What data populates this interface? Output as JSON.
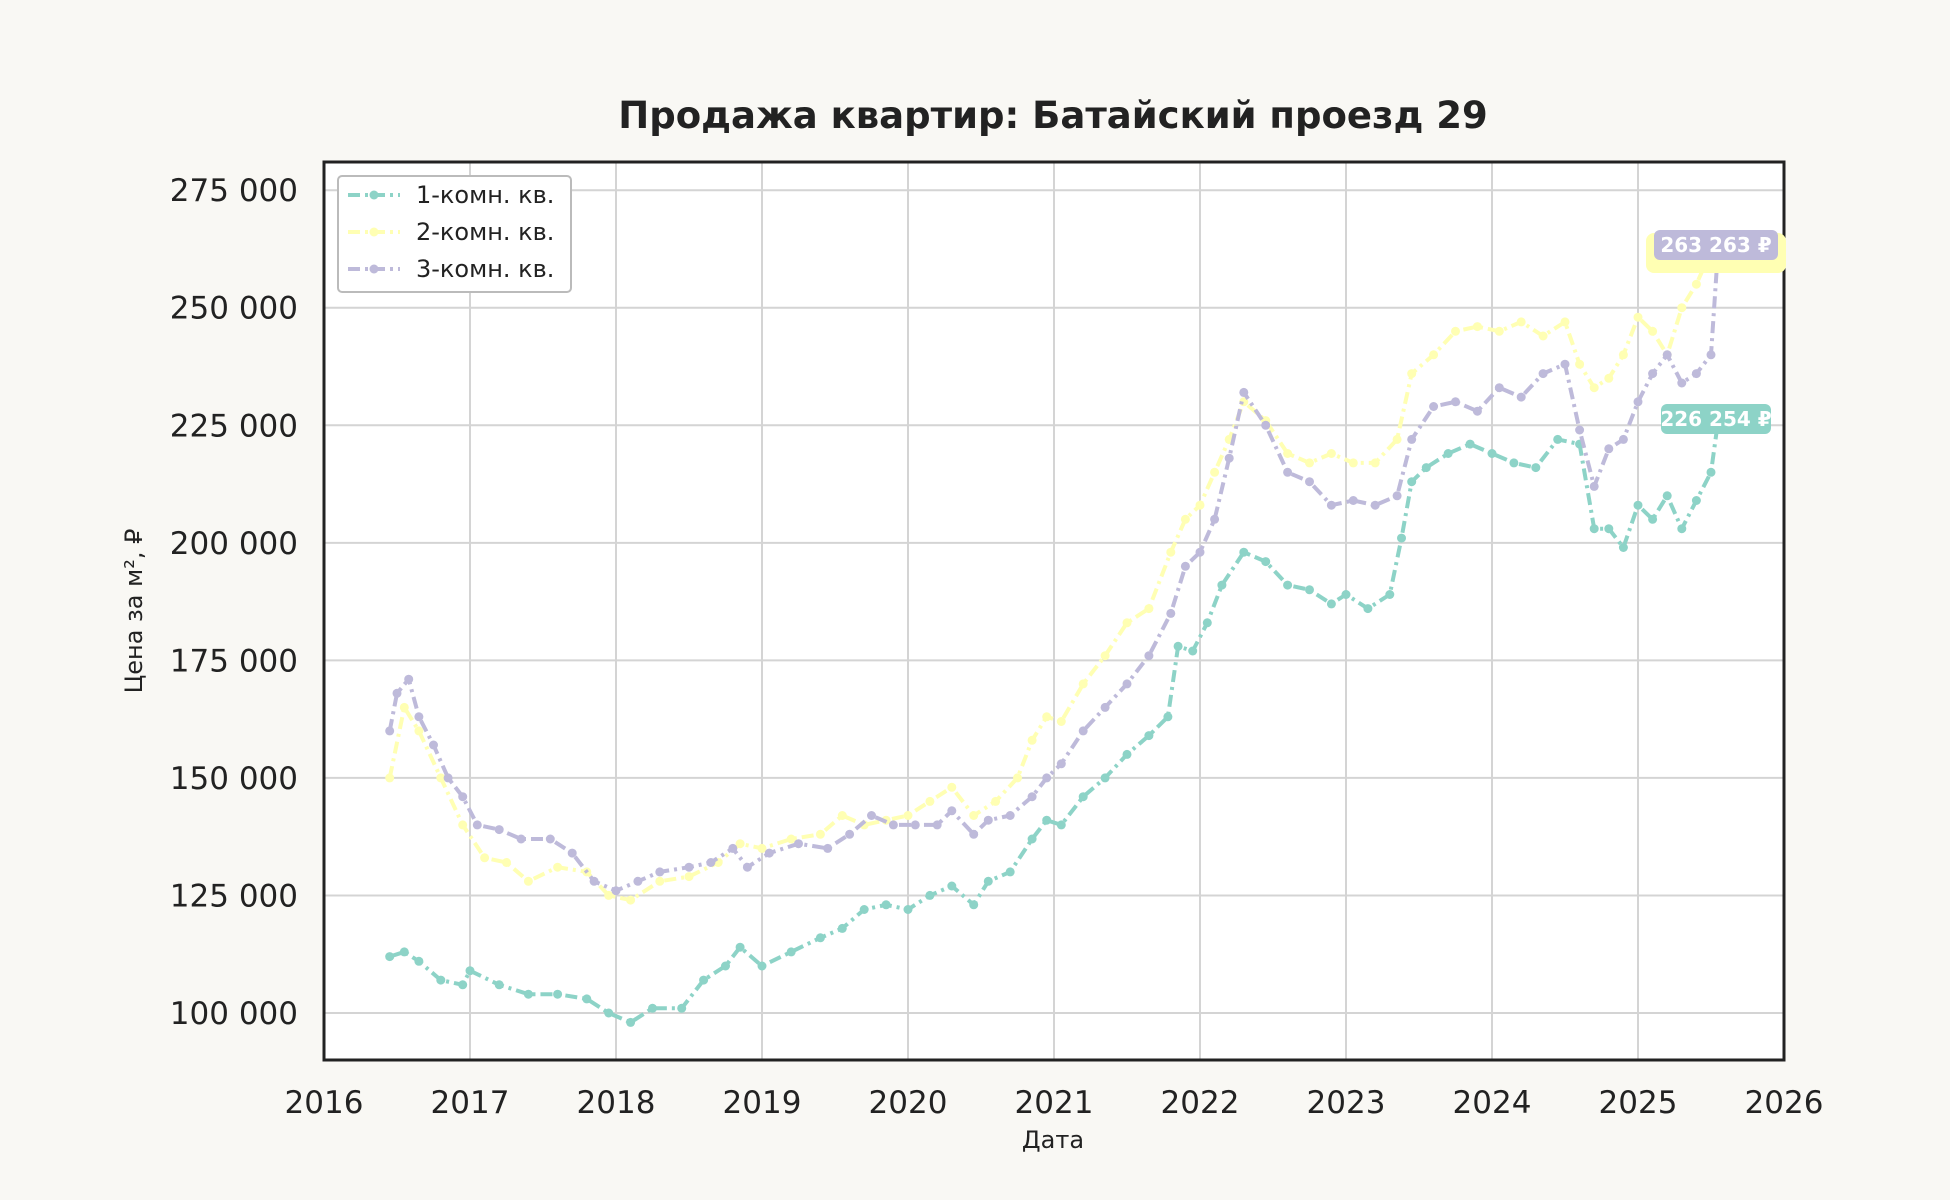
{
  "chart_data": {
    "type": "line",
    "title": "Продажа квартир: Батайский проезд 29",
    "xlabel": "Дата",
    "ylabel": "Цена за м², ₽",
    "xlim": [
      2016,
      2026
    ],
    "ylim": [
      90000,
      281000
    ],
    "x_ticks": [
      "2016",
      "2017",
      "2018",
      "2019",
      "2020",
      "2021",
      "2022",
      "2023",
      "2024",
      "2025",
      "2026"
    ],
    "y_ticks": [
      {
        "value": 100000,
        "label": "100 000"
      },
      {
        "value": 125000,
        "label": "125 000"
      },
      {
        "value": 150000,
        "label": "150 000"
      },
      {
        "value": 175000,
        "label": "175 000"
      },
      {
        "value": 200000,
        "label": "200 000"
      },
      {
        "value": 225000,
        "label": "225 000"
      },
      {
        "value": 250000,
        "label": "250 000"
      },
      {
        "value": 275000,
        "label": "275 000"
      }
    ],
    "grid": true,
    "legend_position": "top-left",
    "series": [
      {
        "name": "1-комн. кв.",
        "color": "#8dd3c7",
        "end_label": "226 254 ₽",
        "x": [
          2016.45,
          2016.55,
          2016.65,
          2016.8,
          2016.95,
          2017.0,
          2017.2,
          2017.4,
          2017.6,
          2017.8,
          2017.95,
          2018.1,
          2018.25,
          2018.45,
          2018.6,
          2018.75,
          2018.85,
          2019.0,
          2019.2,
          2019.4,
          2019.55,
          2019.7,
          2019.85,
          2020.0,
          2020.15,
          2020.3,
          2020.45,
          2020.55,
          2020.7,
          2020.85,
          2020.95,
          2021.05,
          2021.2,
          2021.35,
          2021.5,
          2021.65,
          2021.78,
          2021.85,
          2021.95,
          2022.05,
          2022.15,
          2022.3,
          2022.45,
          2022.6,
          2022.75,
          2022.9,
          2023.0,
          2023.15,
          2023.3,
          2023.38,
          2023.45,
          2023.55,
          2023.7,
          2023.85,
          2024.0,
          2024.15,
          2024.3,
          2024.45,
          2024.6,
          2024.7,
          2024.8,
          2024.9,
          2025.0,
          2025.1,
          2025.2,
          2025.3,
          2025.4,
          2025.5,
          2025.55
        ],
        "y": [
          112000,
          113000,
          111000,
          107000,
          106000,
          109000,
          106000,
          104000,
          104000,
          103000,
          100000,
          98000,
          101000,
          101000,
          107000,
          110000,
          114000,
          110000,
          113000,
          116000,
          118000,
          122000,
          123000,
          122000,
          125000,
          127000,
          123000,
          128000,
          130000,
          137000,
          141000,
          140000,
          146000,
          150000,
          155000,
          159000,
          163000,
          178000,
          177000,
          183000,
          191000,
          198000,
          196000,
          191000,
          190000,
          187000,
          189000,
          186000,
          189000,
          201000,
          213000,
          216000,
          219000,
          221000,
          219000,
          217000,
          216000,
          222000,
          221000,
          203000,
          203000,
          199000,
          208000,
          205000,
          210000,
          203000,
          209000,
          215000,
          226254
        ]
      },
      {
        "name": "2-комн. кв.",
        "color": "#ffffb3",
        "end_label": "263 263 ₽",
        "x": [
          2016.45,
          2016.55,
          2016.65,
          2016.8,
          2016.95,
          2017.1,
          2017.25,
          2017.4,
          2017.6,
          2017.8,
          2017.95,
          2018.1,
          2018.3,
          2018.5,
          2018.7,
          2018.85,
          2019.0,
          2019.2,
          2019.4,
          2019.55,
          2019.7,
          2019.85,
          2020.0,
          2020.15,
          2020.3,
          2020.45,
          2020.6,
          2020.75,
          2020.85,
          2020.95,
          2021.05,
          2021.2,
          2021.35,
          2021.5,
          2021.65,
          2021.8,
          2021.9,
          2022.0,
          2022.1,
          2022.2,
          2022.3,
          2022.45,
          2022.6,
          2022.75,
          2022.9,
          2023.05,
          2023.2,
          2023.35,
          2023.45,
          2023.6,
          2023.75,
          2023.9,
          2024.05,
          2024.2,
          2024.35,
          2024.5,
          2024.6,
          2024.7,
          2024.8,
          2024.9,
          2025.0,
          2025.1,
          2025.2,
          2025.3,
          2025.4,
          2025.5,
          2025.55
        ],
        "y": [
          150000,
          165000,
          160000,
          150000,
          140000,
          133000,
          132000,
          128000,
          131000,
          130000,
          125000,
          124000,
          128000,
          129000,
          132000,
          136000,
          135000,
          137000,
          138000,
          142000,
          140000,
          141000,
          142000,
          145000,
          148000,
          142000,
          145000,
          150000,
          158000,
          163000,
          162000,
          170000,
          176000,
          183000,
          186000,
          198000,
          205000,
          208000,
          215000,
          222000,
          230000,
          226000,
          219000,
          217000,
          219000,
          217000,
          217000,
          222000,
          236000,
          240000,
          245000,
          246000,
          245000,
          247000,
          244000,
          247000,
          238000,
          233000,
          235000,
          240000,
          248000,
          245000,
          240000,
          250000,
          255000,
          262000,
          263263
        ]
      },
      {
        "name": "3-комн. кв.",
        "color": "#bebada",
        "end_label": "263 263 ₽",
        "x": [
          2016.45,
          2016.5,
          2016.58,
          2016.65,
          2016.75,
          2016.85,
          2016.95,
          2017.05,
          2017.2,
          2017.35,
          2017.55,
          2017.7,
          2017.85,
          2018.0,
          2018.15,
          2018.3,
          2018.5,
          2018.65,
          2018.8,
          2018.9,
          2019.05,
          2019.25,
          2019.45,
          2019.6,
          2019.75,
          2019.9,
          2020.05,
          2020.2,
          2020.3,
          2020.45,
          2020.55,
          2020.7,
          2020.85,
          2020.95,
          2021.05,
          2021.2,
          2021.35,
          2021.5,
          2021.65,
          2021.8,
          2021.9,
          2022.0,
          2022.1,
          2022.2,
          2022.3,
          2022.45,
          2022.6,
          2022.75,
          2022.9,
          2023.05,
          2023.2,
          2023.35,
          2023.45,
          2023.6,
          2023.75,
          2023.9,
          2024.05,
          2024.2,
          2024.35,
          2024.5,
          2024.6,
          2024.7,
          2024.8,
          2024.9,
          2025.0,
          2025.1,
          2025.2,
          2025.3,
          2025.4,
          2025.5,
          2025.55
        ],
        "y": [
          160000,
          168000,
          171000,
          163000,
          157000,
          150000,
          146000,
          140000,
          139000,
          137000,
          137000,
          134000,
          128000,
          126000,
          128000,
          130000,
          131000,
          132000,
          135000,
          131000,
          134000,
          136000,
          135000,
          138000,
          142000,
          140000,
          140000,
          140000,
          143000,
          138000,
          141000,
          142000,
          146000,
          150000,
          153000,
          160000,
          165000,
          170000,
          176000,
          185000,
          195000,
          198000,
          205000,
          218000,
          232000,
          225000,
          215000,
          213000,
          208000,
          209000,
          208000,
          210000,
          222000,
          229000,
          230000,
          228000,
          233000,
          231000,
          236000,
          238000,
          224000,
          212000,
          220000,
          222000,
          230000,
          236000,
          240000,
          234000,
          236000,
          240000,
          263263
        ]
      }
    ]
  }
}
